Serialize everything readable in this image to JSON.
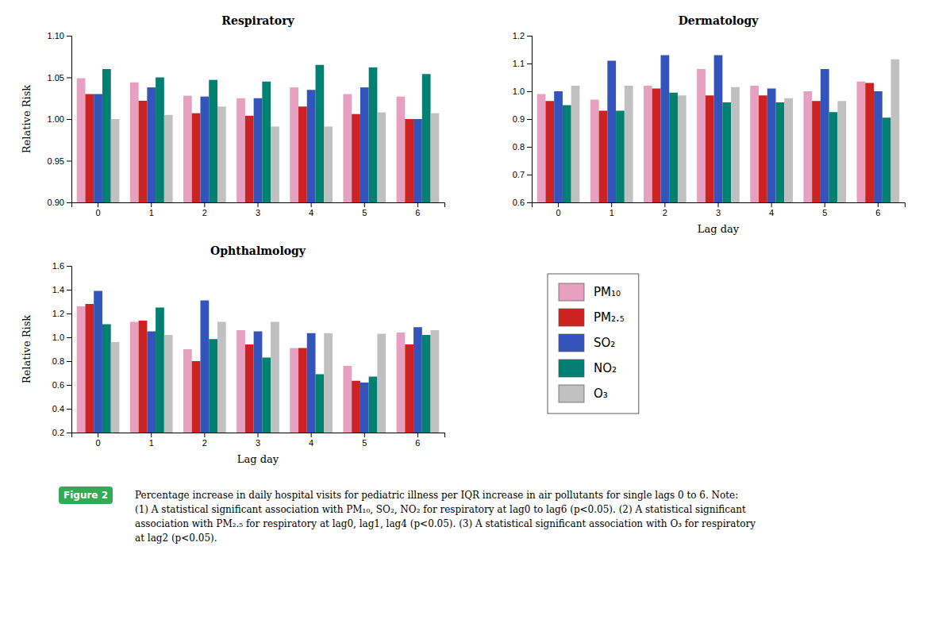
{
  "chart_data": [
    {
      "type": "bar",
      "title": "Respiratory",
      "y_label": "Relative Risk",
      "categories": [
        "0",
        "1",
        "2",
        "3",
        "4",
        "5",
        "6"
      ],
      "series": [
        {
          "name": "PM₁₀",
          "color": "#E8A0C0",
          "values": [
            1.049,
            1.044,
            1.028,
            1.025,
            1.038,
            1.03,
            1.027
          ]
        },
        {
          "name": "PM₂.₅",
          "color": "#CC2222",
          "values": [
            1.03,
            1.022,
            1.007,
            1.004,
            1.015,
            1.006,
            1.0
          ]
        },
        {
          "name": "SO₂",
          "color": "#3355BB",
          "values": [
            1.03,
            1.038,
            1.027,
            1.025,
            1.035,
            1.038,
            1.0
          ]
        },
        {
          "name": "NO₂",
          "color": "#008070",
          "values": [
            1.06,
            1.05,
            1.047,
            1.045,
            1.065,
            1.062,
            1.054
          ]
        },
        {
          "name": "O₃",
          "color": "#C0C0C0",
          "values": [
            1.0,
            1.005,
            1.015,
            0.991,
            0.991,
            1.008,
            1.007
          ]
        }
      ],
      "ylim": [
        0.9,
        1.1
      ],
      "yticks": [
        {
          "value": 0.9,
          "label": "0.90"
        },
        {
          "value": 0.95,
          "label": "0.95"
        },
        {
          "value": 1.0,
          "label": "1.00"
        },
        {
          "value": 1.05,
          "label": "1.05"
        },
        {
          "value": 1.1,
          "label": "1.10"
        }
      ],
      "grid": false,
      "annotations": [
        "Figure 2",
        "Percentage increase in daily hospital visits for pediatric illness per IQR increase in air pollutants for single lags 0 to 6. Note:",
        "(1) A statistical significant association with PM₁₀, SO₂, NO₂ for respiratory at lag0 to lag6 (p<0.05). (2) A statistical significant",
        "association with PM₂.₅ for respiratory at lag0, lag1, lag4 (p<0.05). (3) A statistical significant association with O₃ for respiratory",
        "at lag2 (p<0.05)."
      ]
    },
    {
      "type": "bar",
      "title": "Dermatology",
      "x_label": "Lag day",
      "categories": [
        "0",
        "1",
        "2",
        "3",
        "4",
        "5",
        "6"
      ],
      "series": [
        {
          "name": "PM₁₀",
          "color": "#E8A0C0",
          "values": [
            0.99,
            0.97,
            1.02,
            1.08,
            1.02,
            1.0,
            1.035
          ]
        },
        {
          "name": "PM₂.₅",
          "color": "#CC2222",
          "values": [
            0.965,
            0.93,
            1.01,
            0.985,
            0.985,
            0.965,
            1.03
          ]
        },
        {
          "name": "SO₂",
          "color": "#3355BB",
          "values": [
            1.0,
            1.11,
            1.13,
            1.13,
            1.01,
            1.08,
            1.0
          ]
        },
        {
          "name": "NO₂",
          "color": "#008070",
          "values": [
            0.95,
            0.93,
            0.995,
            0.96,
            0.96,
            0.925,
            0.905
          ]
        },
        {
          "name": "O₃",
          "color": "#C0C0C0",
          "values": [
            1.02,
            1.02,
            0.985,
            1.015,
            0.975,
            0.965,
            1.115
          ]
        }
      ],
      "ylim": [
        0.6,
        1.2
      ],
      "yticks": [
        0.6,
        0.7,
        0.8,
        0.9,
        {
          "value": 1.0,
          "label": "1.0"
        },
        1.1,
        1.2
      ],
      "grid": false
    },
    {
      "type": "bar",
      "title": "Ophthalmology",
      "x_label": "Lag day",
      "y_label": "Relative Risk",
      "categories": [
        "0",
        "1",
        "2",
        "3",
        "4",
        "5",
        "6"
      ],
      "series": [
        {
          "name": "PM₁₀",
          "color": "#E8A0C0",
          "values": [
            1.26,
            1.13,
            0.9,
            1.06,
            0.91,
            0.76,
            1.04
          ]
        },
        {
          "name": "PM₂.₅",
          "color": "#CC2222",
          "values": [
            1.28,
            1.14,
            0.8,
            0.94,
            0.91,
            0.635,
            0.94
          ]
        },
        {
          "name": "SO₂",
          "color": "#3355BB",
          "values": [
            1.39,
            1.05,
            1.31,
            1.05,
            1.035,
            0.62,
            1.085
          ]
        },
        {
          "name": "NO₂",
          "color": "#008070",
          "values": [
            1.11,
            1.25,
            0.985,
            0.83,
            0.69,
            0.67,
            1.02
          ]
        },
        {
          "name": "O₃",
          "color": "#C0C0C0",
          "values": [
            0.96,
            1.02,
            1.13,
            1.13,
            1.035,
            1.03,
            1.06
          ]
        }
      ],
      "ylim": [
        0.2,
        1.6
      ],
      "yticks": [
        0.2,
        0.4,
        0.6,
        0.8,
        {
          "value": 1.0,
          "label": "1.0"
        },
        1.2,
        1.4,
        1.6
      ],
      "grid": false,
      "legend": "lower right"
    }
  ]
}
